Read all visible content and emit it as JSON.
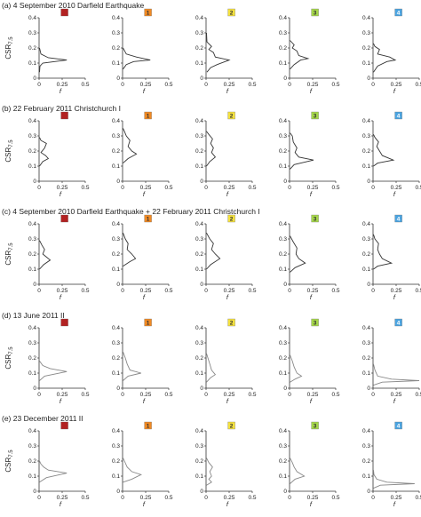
{
  "figure": {
    "ylabel_main": "CSR",
    "ylabel_sub": "7.5",
    "xlabel": "f"
  },
  "colors": {
    "site_0": "#b22222",
    "site_1": "#f08a24",
    "site_2": "#f5e23c",
    "site_3": "#a6d84a",
    "site_4": "#4aa3e0"
  },
  "chart_data": [
    {
      "type": "line",
      "row": "a",
      "title": "(a) 4 September 2010 Darfield Earthquake",
      "axes": {
        "x_ticks": [
          "0",
          "0.25",
          "0.5"
        ],
        "y_ticks": [
          "0",
          "0.1",
          "0.2",
          "0.3",
          "0.4"
        ],
        "xlim": [
          0,
          0.5
        ],
        "ylim": [
          0,
          0.4
        ],
        "x_tick_values": [
          0,
          0.25,
          0.5
        ],
        "y_tick_values": [
          0,
          0.1,
          0.2,
          0.3,
          0.4
        ]
      },
      "panels": [
        {
          "site": "0",
          "line_color": "#333333",
          "points": [
            [
              0.005,
              0.04
            ],
            [
              0.01,
              0.08
            ],
            [
              0.04,
              0.1
            ],
            [
              0.3,
              0.12
            ],
            [
              0.1,
              0.135
            ],
            [
              0.02,
              0.16
            ],
            [
              0.005,
              0.2
            ]
          ]
        },
        {
          "site": "1",
          "line_color": "#333333",
          "points": [
            [
              0.005,
              0.06
            ],
            [
              0.04,
              0.09
            ],
            [
              0.12,
              0.11
            ],
            [
              0.3,
              0.12
            ],
            [
              0.15,
              0.14
            ],
            [
              0.04,
              0.16
            ],
            [
              0.005,
              0.2
            ]
          ]
        },
        {
          "site": "2",
          "line_color": "#333333",
          "points": [
            [
              0.01,
              0.04
            ],
            [
              0.05,
              0.07
            ],
            [
              0.12,
              0.09
            ],
            [
              0.25,
              0.12
            ],
            [
              0.1,
              0.14
            ],
            [
              0.08,
              0.17
            ],
            [
              0.03,
              0.19
            ],
            [
              0.06,
              0.21
            ],
            [
              0.01,
              0.24
            ],
            [
              0.005,
              0.3
            ]
          ]
        },
        {
          "site": "3",
          "line_color": "#333333",
          "points": [
            [
              0.005,
              0.06
            ],
            [
              0.05,
              0.09
            ],
            [
              0.12,
              0.12
            ],
            [
              0.2,
              0.13
            ],
            [
              0.1,
              0.15
            ],
            [
              0.08,
              0.18
            ],
            [
              0.03,
              0.2
            ],
            [
              0.05,
              0.22
            ],
            [
              0.005,
              0.25
            ]
          ]
        },
        {
          "site": "4",
          "line_color": "#333333",
          "points": [
            [
              0.005,
              0.04
            ],
            [
              0.05,
              0.08
            ],
            [
              0.15,
              0.11
            ],
            [
              0.24,
              0.12
            ],
            [
              0.18,
              0.14
            ],
            [
              0.05,
              0.16
            ],
            [
              0.07,
              0.19
            ],
            [
              0.02,
              0.21
            ],
            [
              0.005,
              0.23
            ]
          ]
        }
      ]
    },
    {
      "type": "line",
      "row": "b",
      "title": "(b) 22 February 2011 Christchurch I",
      "axes": {
        "x_ticks": [
          "0",
          "0.25",
          "0.5"
        ],
        "y_ticks": [
          "0",
          "0.1",
          "0.2",
          "0.3",
          "0.4"
        ],
        "xlim": [
          0,
          0.5
        ],
        "ylim": [
          0,
          0.4
        ],
        "x_tick_values": [
          0,
          0.25,
          0.5
        ],
        "y_tick_values": [
          0,
          0.1,
          0.2,
          0.3,
          0.4
        ]
      },
      "panels": [
        {
          "site": "0",
          "line_color": "#333333",
          "points": [
            [
              0.005,
              0.1
            ],
            [
              0.04,
              0.13
            ],
            [
              0.1,
              0.15
            ],
            [
              0.07,
              0.17
            ],
            [
              0.02,
              0.19
            ],
            [
              0.06,
              0.22
            ],
            [
              0.08,
              0.25
            ],
            [
              0.02,
              0.27
            ],
            [
              0.005,
              0.29
            ]
          ]
        },
        {
          "site": "1",
          "line_color": "#333333",
          "points": [
            [
              0.005,
              0.12
            ],
            [
              0.06,
              0.15
            ],
            [
              0.15,
              0.18
            ],
            [
              0.1,
              0.2
            ],
            [
              0.06,
              0.23
            ],
            [
              0.08,
              0.27
            ],
            [
              0.04,
              0.3
            ],
            [
              0.02,
              0.33
            ],
            [
              0.005,
              0.35
            ]
          ]
        },
        {
          "site": "2",
          "line_color": "#333333",
          "points": [
            [
              0.005,
              0.1
            ],
            [
              0.04,
              0.13
            ],
            [
              0.1,
              0.16
            ],
            [
              0.06,
              0.19
            ],
            [
              0.08,
              0.22
            ],
            [
              0.05,
              0.25
            ],
            [
              0.07,
              0.28
            ],
            [
              0.03,
              0.31
            ],
            [
              0.005,
              0.33
            ]
          ]
        },
        {
          "site": "3",
          "line_color": "#333333",
          "points": [
            [
              0.005,
              0.08
            ],
            [
              0.05,
              0.11
            ],
            [
              0.26,
              0.14
            ],
            [
              0.1,
              0.16
            ],
            [
              0.06,
              0.19
            ],
            [
              0.08,
              0.22
            ],
            [
              0.04,
              0.26
            ],
            [
              0.03,
              0.3
            ],
            [
              0.005,
              0.32
            ]
          ]
        },
        {
          "site": "4",
          "line_color": "#333333",
          "points": [
            [
              0.005,
              0.1
            ],
            [
              0.05,
              0.12
            ],
            [
              0.22,
              0.14
            ],
            [
              0.1,
              0.17
            ],
            [
              0.07,
              0.2
            ],
            [
              0.04,
              0.23
            ],
            [
              0.06,
              0.26
            ],
            [
              0.02,
              0.29
            ],
            [
              0.005,
              0.31
            ]
          ]
        }
      ]
    },
    {
      "type": "line",
      "row": "c",
      "title": "(c) 4 September 2010 Darfield Earthquake + 22 February 2011 Christchurch I",
      "axes": {
        "x_ticks": [
          "0",
          "0.25",
          "0.5"
        ],
        "y_ticks": [
          "0",
          "0.1",
          "0.2",
          "0.3",
          "0.4"
        ],
        "xlim": [
          0,
          0.5
        ],
        "ylim": [
          0,
          0.4
        ],
        "x_tick_values": [
          0,
          0.25,
          0.5
        ],
        "y_tick_values": [
          0,
          0.1,
          0.2,
          0.3,
          0.4
        ]
      },
      "panels": [
        {
          "site": "0",
          "line_color": "#333333",
          "points": [
            [
              0.005,
              0.1
            ],
            [
              0.05,
              0.13
            ],
            [
              0.12,
              0.16
            ],
            [
              0.08,
              0.18
            ],
            [
              0.04,
              0.2
            ],
            [
              0.06,
              0.23
            ],
            [
              0.03,
              0.26
            ],
            [
              0.005,
              0.29
            ]
          ]
        },
        {
          "site": "1",
          "line_color": "#333333",
          "points": [
            [
              0.005,
              0.12
            ],
            [
              0.08,
              0.15
            ],
            [
              0.14,
              0.17
            ],
            [
              0.1,
              0.2
            ],
            [
              0.05,
              0.23
            ],
            [
              0.06,
              0.27
            ],
            [
              0.03,
              0.3
            ],
            [
              0.005,
              0.34
            ]
          ]
        },
        {
          "site": "2",
          "line_color": "#333333",
          "points": [
            [
              0.005,
              0.1
            ],
            [
              0.05,
              0.13
            ],
            [
              0.15,
              0.17
            ],
            [
              0.1,
              0.2
            ],
            [
              0.06,
              0.23
            ],
            [
              0.08,
              0.27
            ],
            [
              0.04,
              0.3
            ],
            [
              0.005,
              0.34
            ]
          ]
        },
        {
          "site": "3",
          "line_color": "#333333",
          "points": [
            [
              0.005,
              0.08
            ],
            [
              0.06,
              0.11
            ],
            [
              0.17,
              0.14
            ],
            [
              0.1,
              0.17
            ],
            [
              0.07,
              0.2
            ],
            [
              0.08,
              0.24
            ],
            [
              0.04,
              0.28
            ],
            [
              0.005,
              0.32
            ]
          ]
        },
        {
          "site": "4",
          "line_color": "#333333",
          "points": [
            [
              0.005,
              0.1
            ],
            [
              0.05,
              0.12
            ],
            [
              0.2,
              0.14
            ],
            [
              0.1,
              0.17
            ],
            [
              0.07,
              0.2
            ],
            [
              0.05,
              0.23
            ],
            [
              0.06,
              0.27
            ],
            [
              0.02,
              0.3
            ],
            [
              0.005,
              0.33
            ]
          ]
        }
      ]
    },
    {
      "type": "line",
      "row": "d",
      "title": "(d) 13 June 2011 II",
      "axes": {
        "x_ticks": [
          "0",
          "0.25",
          "0.5"
        ],
        "y_ticks": [
          "0",
          "0.1",
          "0.2",
          "0.3",
          "0.4"
        ],
        "xlim": [
          0,
          0.5
        ],
        "ylim": [
          0,
          0.4
        ],
        "x_tick_values": [
          0,
          0.25,
          0.5
        ],
        "y_tick_values": [
          0,
          0.1,
          0.2,
          0.3,
          0.4
        ]
      },
      "panels": [
        {
          "site": "0",
          "line_color": "#888888",
          "points": [
            [
              0.005,
              0.05
            ],
            [
              0.06,
              0.08
            ],
            [
              0.3,
              0.11
            ],
            [
              0.12,
              0.13
            ],
            [
              0.04,
              0.15
            ],
            [
              0.005,
              0.18
            ]
          ]
        },
        {
          "site": "1",
          "line_color": "#888888",
          "points": [
            [
              0.005,
              0.05
            ],
            [
              0.06,
              0.08
            ],
            [
              0.2,
              0.1
            ],
            [
              0.08,
              0.12
            ],
            [
              0.05,
              0.16
            ],
            [
              0.03,
              0.2
            ],
            [
              0.005,
              0.24
            ]
          ]
        },
        {
          "site": "2",
          "line_color": "#888888",
          "points": [
            [
              0.005,
              0.04
            ],
            [
              0.05,
              0.07
            ],
            [
              0.1,
              0.09
            ],
            [
              0.06,
              0.12
            ],
            [
              0.04,
              0.16
            ],
            [
              0.02,
              0.2
            ],
            [
              0.005,
              0.23
            ]
          ]
        },
        {
          "site": "3",
          "line_color": "#888888",
          "points": [
            [
              0.005,
              0.04
            ],
            [
              0.06,
              0.06
            ],
            [
              0.13,
              0.08
            ],
            [
              0.08,
              0.1
            ],
            [
              0.05,
              0.14
            ],
            [
              0.03,
              0.18
            ],
            [
              0.005,
              0.22
            ]
          ]
        },
        {
          "site": "4",
          "line_color": "#888888",
          "points": [
            [
              0.005,
              0.02
            ],
            [
              0.1,
              0.04
            ],
            [
              0.5,
              0.05
            ],
            [
              0.2,
              0.06
            ],
            [
              0.05,
              0.08
            ],
            [
              0.02,
              0.12
            ],
            [
              0.005,
              0.16
            ]
          ]
        }
      ]
    },
    {
      "type": "line",
      "row": "e",
      "title": "(e) 23 December 2011 II",
      "axes": {
        "x_ticks": [
          "0",
          "0.25",
          "0.5"
        ],
        "y_ticks": [
          "0",
          "0.1",
          "0.2",
          "0.3",
          "0.4"
        ],
        "xlim": [
          0,
          0.5
        ],
        "ylim": [
          0,
          0.4
        ],
        "x_tick_values": [
          0,
          0.25,
          0.5
        ],
        "y_tick_values": [
          0,
          0.1,
          0.2,
          0.3,
          0.4
        ]
      },
      "panels": [
        {
          "site": "0",
          "line_color": "#888888",
          "points": [
            [
              0.005,
              0.06
            ],
            [
              0.08,
              0.09
            ],
            [
              0.3,
              0.12
            ],
            [
              0.1,
              0.14
            ],
            [
              0.05,
              0.16
            ],
            [
              0.02,
              0.18
            ],
            [
              0.005,
              0.2
            ]
          ]
        },
        {
          "site": "1",
          "line_color": "#888888",
          "points": [
            [
              0.005,
              0.06
            ],
            [
              0.1,
              0.08
            ],
            [
              0.2,
              0.11
            ],
            [
              0.1,
              0.13
            ],
            [
              0.05,
              0.16
            ],
            [
              0.02,
              0.2
            ],
            [
              0.005,
              0.22
            ]
          ]
        },
        {
          "site": "2",
          "line_color": "#888888",
          "points": [
            [
              0.005,
              0.04
            ],
            [
              0.06,
              0.06
            ],
            [
              0.03,
              0.08
            ],
            [
              0.06,
              0.1
            ],
            [
              0.04,
              0.13
            ],
            [
              0.07,
              0.16
            ],
            [
              0.03,
              0.19
            ],
            [
              0.005,
              0.22
            ]
          ]
        },
        {
          "site": "3",
          "line_color": "#888888",
          "points": [
            [
              0.005,
              0.05
            ],
            [
              0.06,
              0.08
            ],
            [
              0.16,
              0.1
            ],
            [
              0.08,
              0.13
            ],
            [
              0.05,
              0.16
            ],
            [
              0.03,
              0.19
            ],
            [
              0.005,
              0.22
            ]
          ]
        },
        {
          "site": "4",
          "line_color": "#888888",
          "points": [
            [
              0.005,
              0.02
            ],
            [
              0.08,
              0.04
            ],
            [
              0.45,
              0.05
            ],
            [
              0.15,
              0.06
            ],
            [
              0.04,
              0.08
            ],
            [
              0.01,
              0.11
            ],
            [
              0.005,
              0.14
            ]
          ]
        }
      ]
    }
  ]
}
